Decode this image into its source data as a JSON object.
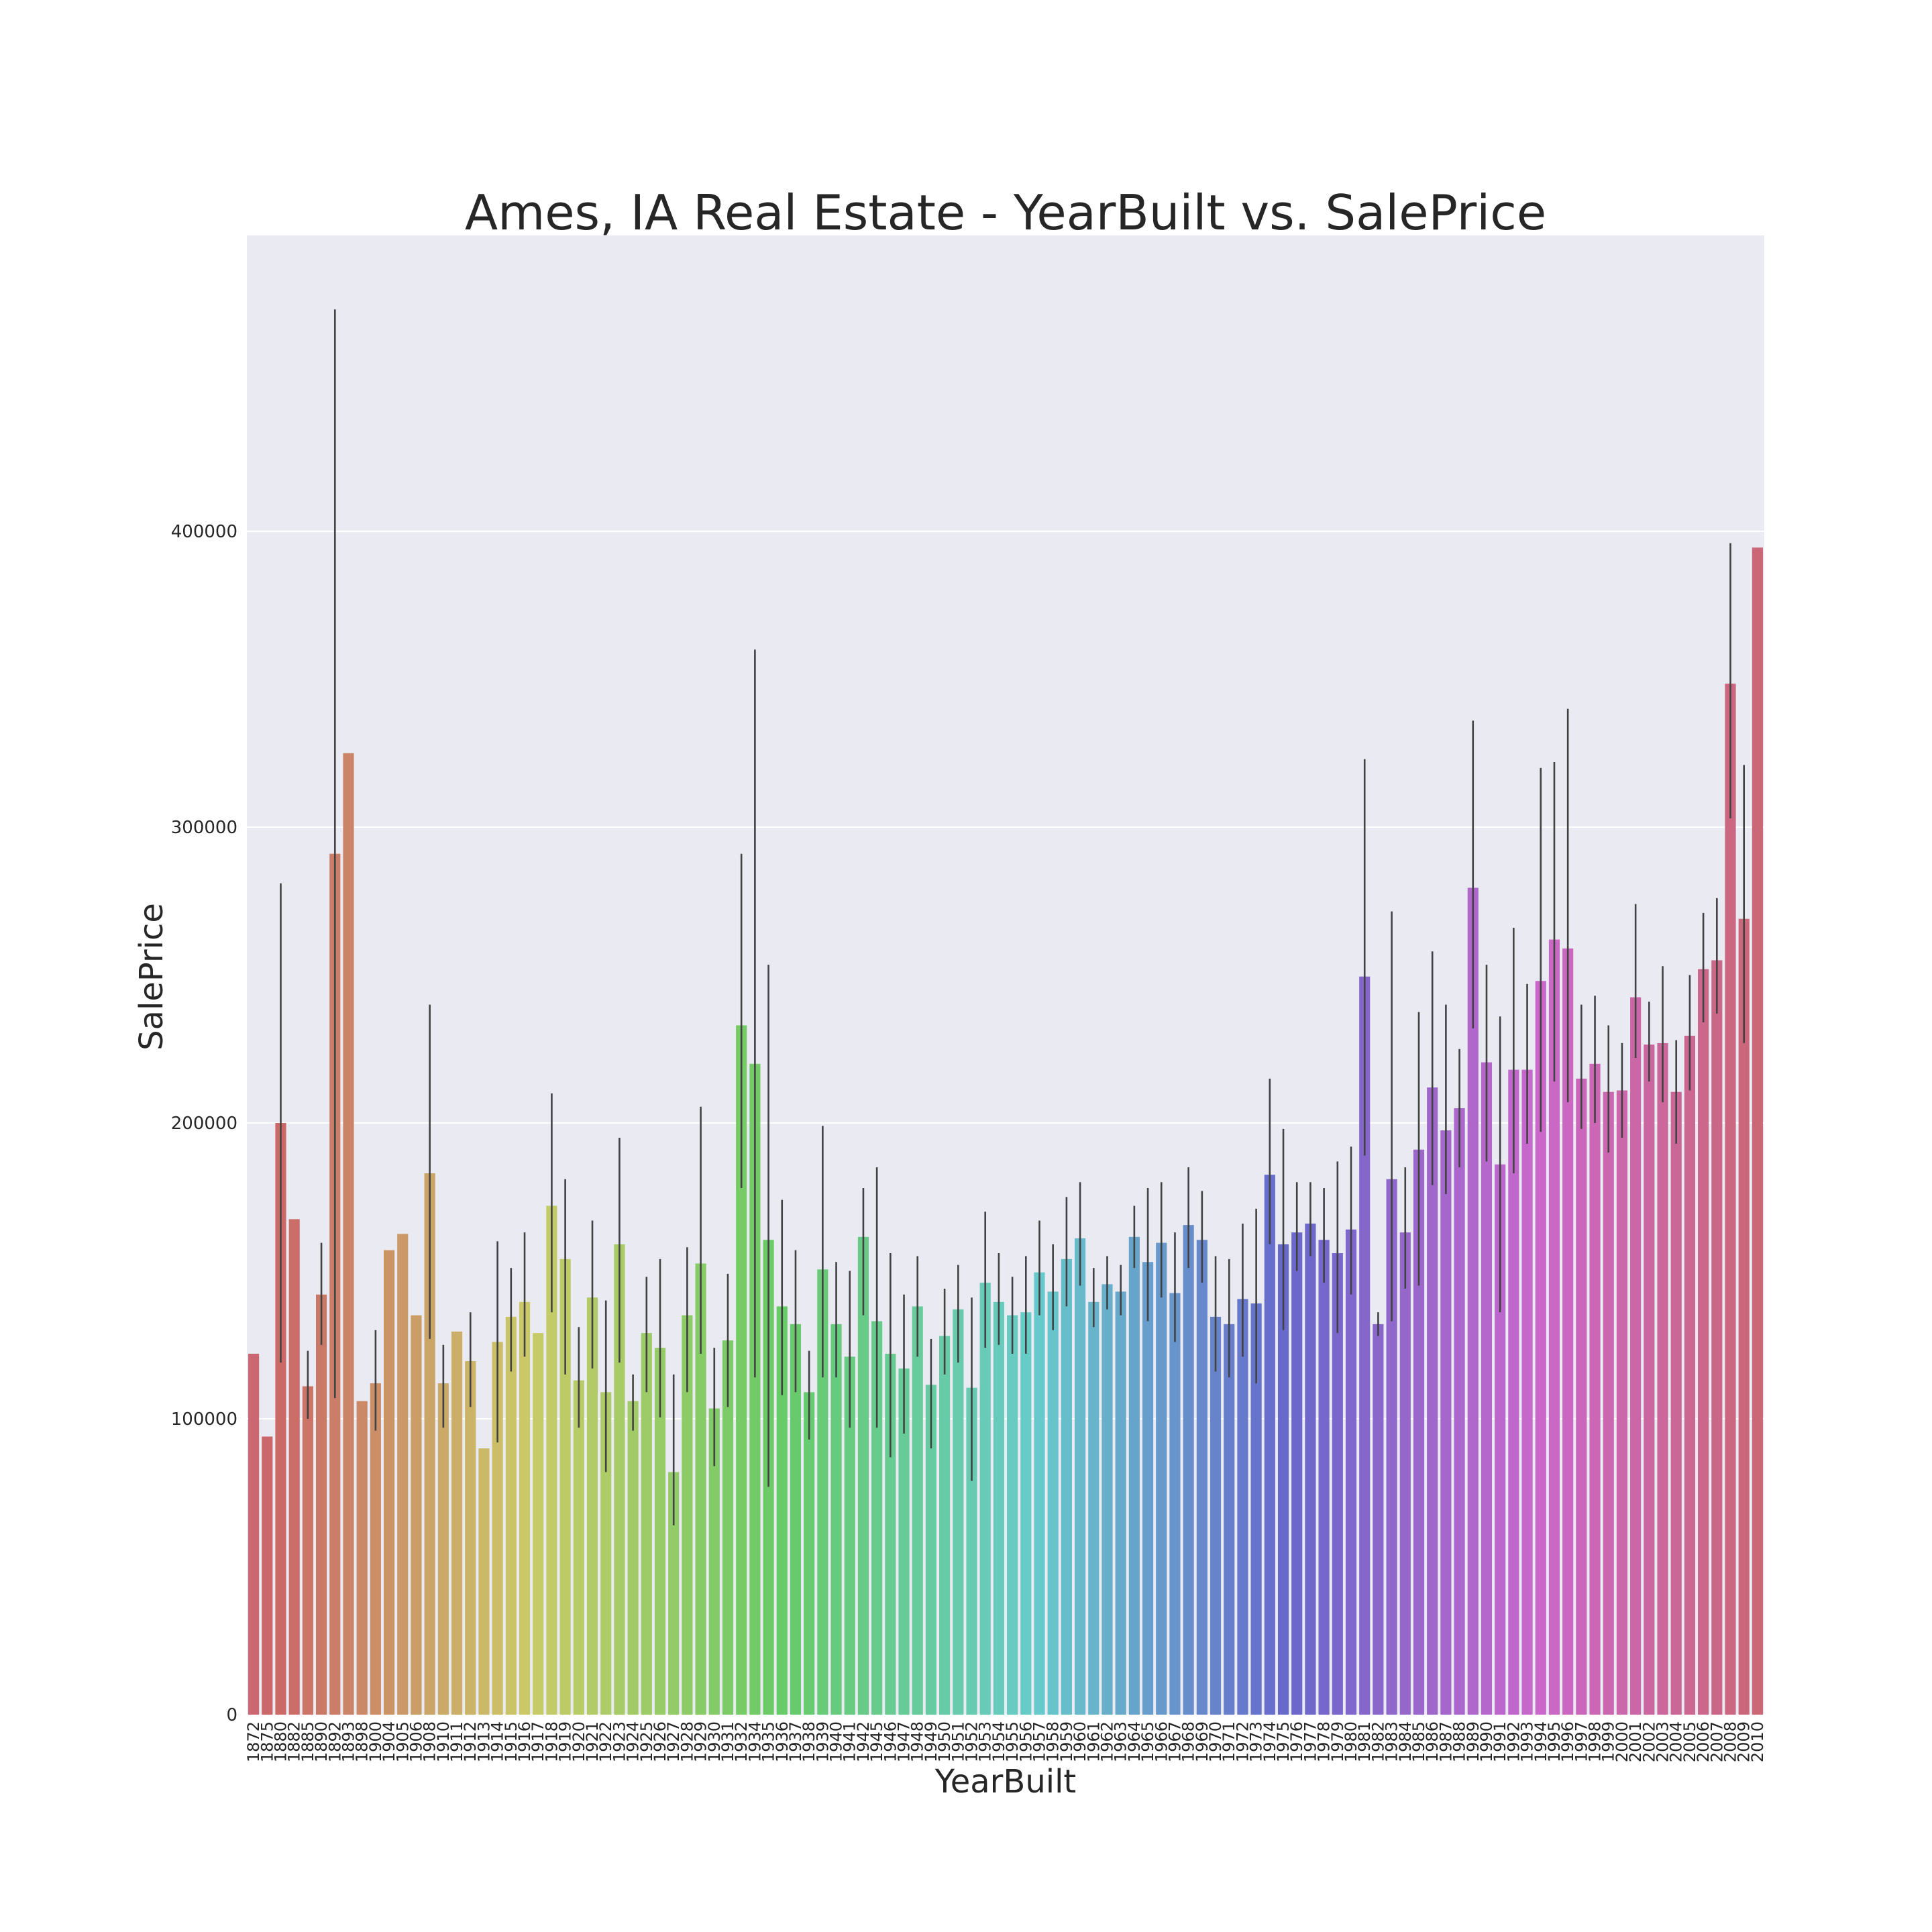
{
  "chart_data": {
    "type": "bar",
    "title": "Ames, IA Real Estate - YearBuilt vs. SalePrice",
    "xlabel": "YearBuilt",
    "ylabel": "SalePrice",
    "ylim": [
      0,
      500000
    ],
    "yticks": [
      0,
      100000,
      200000,
      300000,
      400000
    ],
    "grid": true,
    "background": "#eaeaf2",
    "error_bars": true,
    "categories": [
      1872,
      1875,
      1880,
      1882,
      1885,
      1890,
      1892,
      1893,
      1898,
      1900,
      1904,
      1905,
      1906,
      1908,
      1910,
      1911,
      1912,
      1913,
      1914,
      1915,
      1916,
      1917,
      1918,
      1919,
      1920,
      1921,
      1922,
      1923,
      1924,
      1925,
      1926,
      1927,
      1928,
      1929,
      1930,
      1931,
      1932,
      1934,
      1935,
      1936,
      1937,
      1938,
      1939,
      1940,
      1941,
      1942,
      1945,
      1946,
      1947,
      1948,
      1949,
      1950,
      1951,
      1952,
      1953,
      1954,
      1955,
      1956,
      1957,
      1958,
      1959,
      1960,
      1961,
      1962,
      1963,
      1964,
      1965,
      1966,
      1967,
      1968,
      1969,
      1970,
      1971,
      1972,
      1973,
      1974,
      1975,
      1976,
      1977,
      1978,
      1979,
      1980,
      1981,
      1982,
      1983,
      1984,
      1985,
      1986,
      1987,
      1988,
      1989,
      1990,
      1991,
      1992,
      1993,
      1994,
      1995,
      1996,
      1997,
      1998,
      1999,
      2000,
      2001,
      2002,
      2003,
      2004,
      2005,
      2006,
      2007,
      2008,
      2009,
      2010
    ],
    "values": [
      122000,
      94000,
      200000,
      167500,
      111000,
      142000,
      291000,
      325000,
      106000,
      112000,
      157000,
      162500,
      135000,
      183000,
      112000,
      129500,
      119500,
      90000,
      126000,
      134500,
      139500,
      129000,
      172000,
      154000,
      113000,
      141000,
      109000,
      159000,
      106000,
      129000,
      124000,
      82000,
      135000,
      152500,
      103500,
      126500,
      233000,
      220000,
      160500,
      138000,
      132000,
      109000,
      150500,
      132000,
      121000,
      161500,
      133000,
      122000,
      117000,
      138000,
      111500,
      128000,
      137000,
      110500,
      146000,
      139500,
      135000,
      136000,
      149500,
      143000,
      154000,
      161000,
      139500,
      145500,
      143000,
      161500,
      153000,
      159500,
      142500,
      165500,
      160500,
      134500,
      132000,
      140500,
      139000,
      182500,
      159000,
      163000,
      166000,
      160500,
      156000,
      164000,
      249500,
      132000,
      181000,
      163000,
      191000,
      212000,
      197500,
      205000,
      279500,
      220500,
      186000,
      218000,
      218000,
      248000,
      262000,
      259000,
      215000,
      220000,
      210500,
      211000,
      242500,
      226500,
      227000,
      210500,
      229500,
      252000,
      255000,
      348500,
      269000,
      394500
    ],
    "ci_low": [
      null,
      null,
      119000,
      null,
      100000,
      125000,
      107000,
      null,
      null,
      96000,
      null,
      null,
      null,
      127000,
      97000,
      null,
      104000,
      null,
      92000,
      116000,
      121000,
      null,
      136000,
      115000,
      97000,
      117000,
      82000,
      119000,
      96000,
      109000,
      100500,
      64000,
      109000,
      122000,
      84000,
      104000,
      178000,
      114000,
      77000,
      108000,
      109000,
      93000,
      114000,
      114000,
      97000,
      135000,
      97000,
      87000,
      95000,
      121000,
      90000,
      115000,
      119000,
      79000,
      124000,
      125000,
      122000,
      122000,
      135000,
      130000,
      138000,
      145000,
      131000,
      137000,
      135000,
      151000,
      133000,
      141000,
      126000,
      151000,
      146000,
      116000,
      114000,
      121000,
      112000,
      159000,
      130000,
      150000,
      155000,
      146000,
      129000,
      142000,
      189000,
      128000,
      133000,
      144000,
      145000,
      179000,
      176000,
      185000,
      232000,
      187000,
      136000,
      183000,
      193000,
      197000,
      214000,
      207000,
      198000,
      200000,
      190000,
      195000,
      222000,
      214000,
      207000,
      193000,
      211000,
      234000,
      237000,
      303000,
      227000,
      null
    ],
    "ci_high": [
      null,
      null,
      281000,
      null,
      123000,
      159500,
      475000,
      null,
      null,
      130000,
      null,
      null,
      null,
      240000,
      125000,
      null,
      136000,
      null,
      160000,
      151000,
      163000,
      null,
      210000,
      181000,
      131000,
      167000,
      140000,
      195000,
      115000,
      148000,
      154000,
      115000,
      158000,
      205500,
      124000,
      149000,
      291000,
      360000,
      253500,
      174000,
      157000,
      123000,
      199000,
      153000,
      150000,
      178000,
      185000,
      156000,
      142000,
      155000,
      127000,
      144000,
      152000,
      141000,
      170000,
      156000,
      148000,
      155000,
      167000,
      159000,
      175000,
      180000,
      151000,
      155000,
      152000,
      172000,
      178000,
      180000,
      163000,
      185000,
      177000,
      155000,
      154000,
      166000,
      171000,
      215000,
      198000,
      180000,
      180000,
      178000,
      187000,
      192000,
      323000,
      136000,
      271500,
      185000,
      237500,
      258000,
      240000,
      225000,
      336000,
      253500,
      236000,
      266000,
      247000,
      320000,
      322000,
      340000,
      240000,
      243000,
      233000,
      227000,
      274000,
      241000,
      253000,
      228000,
      250000,
      271000,
      276000,
      396000,
      321000,
      null
    ]
  }
}
